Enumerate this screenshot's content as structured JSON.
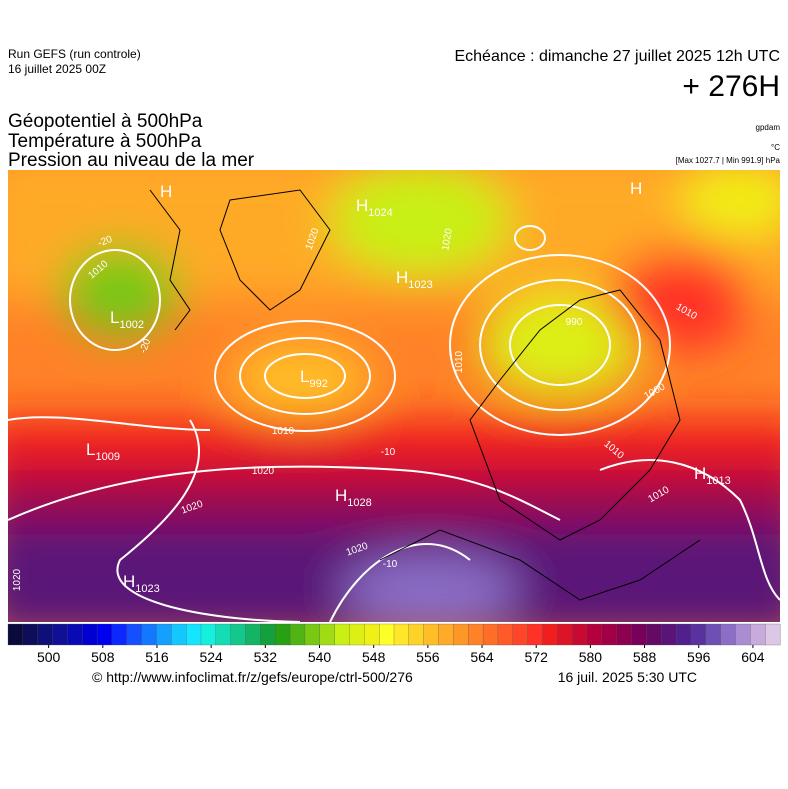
{
  "header": {
    "run": "Run GEFS (run controle)",
    "date": "16 juillet 2025 00Z",
    "echeance": "Echéance : dimanche 27 juillet 2025 12h UTC",
    "lead": "+ 276H"
  },
  "titles": [
    "Géopotentiel à 500hPa",
    "Température à 500hPa",
    "Pression au niveau de la mer"
  ],
  "units": [
    "gpdam",
    "°C",
    "[Max 1027.7 | Min 991.9] hPa"
  ],
  "centers": [
    {
      "symbol": "H"
    },
    {
      "symbol": "H",
      "value": 1024
    },
    {
      "symbol": "H",
      "value": 1023
    },
    {
      "symbol": "H"
    },
    {
      "symbol": "L",
      "value": 1002
    },
    {
      "symbol": "L",
      "value": 992
    },
    {
      "symbol": "L",
      "value": 1009
    },
    {
      "symbol": "H",
      "value": 1028
    },
    {
      "symbol": "H",
      "value": 1023
    },
    {
      "symbol": "H",
      "value": 1013
    }
  ],
  "contour_labels": [
    1020,
    1020,
    1010,
    1020,
    1020,
    1020,
    1020,
    1000,
    1010,
    1010,
    1010,
    990,
    1010,
    -20,
    -20,
    -10,
    -10,
    1010
  ],
  "colorbar": {
    "lim": [
      494,
      608
    ],
    "ticks": [
      500,
      508,
      516,
      524,
      532,
      540,
      548,
      556,
      564,
      572,
      580,
      588,
      596,
      604
    ],
    "colors": [
      "#0a0a3c",
      "#0d0d5a",
      "#0f0f78",
      "#101096",
      "#0a0ab4",
      "#0000d2",
      "#0000f0",
      "#0a28ff",
      "#1450ff",
      "#1478ff",
      "#14a0ff",
      "#14c8ff",
      "#14e6ff",
      "#14f0dc",
      "#14dcb4",
      "#14c88c",
      "#14b464",
      "#14a03c",
      "#28a014",
      "#50b414",
      "#78c814",
      "#a0dc14",
      "#c8f014",
      "#dcf014",
      "#f0f014",
      "#ffff28",
      "#ffe628",
      "#ffd228",
      "#ffbe28",
      "#ffaa28",
      "#ff9628",
      "#ff8228",
      "#ff6e28",
      "#ff5a28",
      "#ff4628",
      "#ff3228",
      "#f01e1e",
      "#dc1428",
      "#c80a32",
      "#b4003c",
      "#a00046",
      "#8c0050",
      "#78005a",
      "#640a64",
      "#5a1478",
      "#50208c",
      "#5a32a0",
      "#6e50b4",
      "#8c6ec8",
      "#aa8cd2",
      "#c8aadc",
      "#dcc8e6"
    ]
  },
  "footer": {
    "source": "© http://www.infoclimat.fr/z/gefs/europe/ctrl-500/276",
    "time": "16 juil. 2025  5:30 UTC"
  }
}
